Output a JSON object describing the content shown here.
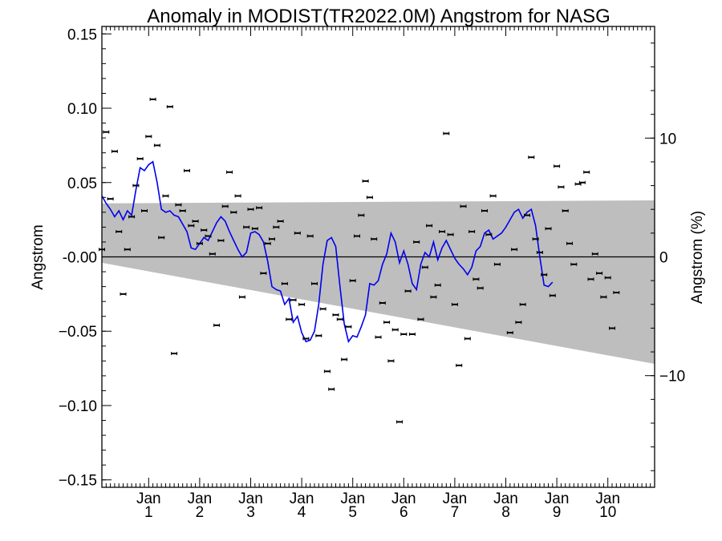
{
  "chart_data": {
    "type": "scatter",
    "title": "Anomaly in MODIST(TR2022.0M) Angstrom for NASG",
    "ylabel": "Angstrom",
    "y2label": "Angstrom (%)",
    "ylim": [
      -0.155,
      0.155
    ],
    "y2lim": [
      -19.4,
      19.4
    ],
    "xlim": [
      0,
      130
    ],
    "x_tick_labels": [
      {
        "x": 11,
        "top": "Jan",
        "bottom": "1"
      },
      {
        "x": 23,
        "top": "Jan",
        "bottom": "2"
      },
      {
        "x": 35,
        "top": "Jan",
        "bottom": "3"
      },
      {
        "x": 47,
        "top": "Jan",
        "bottom": "4"
      },
      {
        "x": 59,
        "top": "Jan",
        "bottom": "5"
      },
      {
        "x": 71,
        "top": "Jan",
        "bottom": "6"
      },
      {
        "x": 83,
        "top": "Jan",
        "bottom": "7"
      },
      {
        "x": 95,
        "top": "Jan",
        "bottom": "8"
      },
      {
        "x": 107,
        "top": "Jan",
        "bottom": "9"
      },
      {
        "x": 119,
        "top": "Jan",
        "bottom": "10"
      }
    ],
    "y_ticks": [
      -0.15,
      -0.1,
      -0.05,
      0,
      0.05,
      0.1,
      0.15
    ],
    "y_tick_labels": [
      "−0.15",
      "−0.10",
      "−0.05",
      "-0.00",
      "0.05",
      "0.10",
      "0.15"
    ],
    "y2_ticks": [
      -10,
      0,
      10
    ],
    "y2_tick_labels": [
      "−10",
      "0",
      "10"
    ],
    "band": {
      "upper": [
        [
          0,
          0.036
        ],
        [
          130,
          0.038
        ]
      ],
      "lower": [
        [
          0,
          -0.004
        ],
        [
          130,
          -0.072
        ]
      ],
      "color": "#bebebe"
    },
    "zero_line": 0,
    "series": [
      {
        "kind": "monthly_points",
        "color": "#000000",
        "points": [
          [
            0,
            0.005
          ],
          [
            1,
            0.084
          ],
          [
            2,
            0.039
          ],
          [
            3,
            0.071
          ],
          [
            4,
            0.017
          ],
          [
            5,
            -0.025
          ],
          [
            6,
            0.005
          ],
          [
            7,
            0.027
          ],
          [
            8,
            0.048
          ],
          [
            9,
            0.066
          ],
          [
            10,
            0.031
          ],
          [
            11,
            0.081
          ],
          [
            12,
            0.106
          ],
          [
            13,
            0.075
          ],
          [
            14,
            0.013
          ],
          [
            15,
            0.041
          ],
          [
            16,
            0.101
          ],
          [
            17,
            -0.065
          ],
          [
            18,
            0.035
          ],
          [
            19,
            0.031
          ],
          [
            20,
            0.058
          ],
          [
            21,
            0.021
          ],
          [
            22,
            0.024
          ],
          [
            23,
            0.009
          ],
          [
            24,
            0.018
          ],
          [
            25,
            0.014
          ],
          [
            26,
            0.002
          ],
          [
            27,
            -0.046
          ],
          [
            28,
            0.011
          ],
          [
            29,
            0.034
          ],
          [
            30,
            0.057
          ],
          [
            31,
            0.03
          ],
          [
            32,
            0.041
          ],
          [
            33,
            -0.027
          ],
          [
            34,
            0.02
          ],
          [
            35,
            0.032
          ],
          [
            36,
            0.019
          ],
          [
            37,
            0.033
          ],
          [
            38,
            -0.011
          ],
          [
            39,
            0.009
          ],
          [
            40,
            0.012
          ],
          [
            41,
            0.02
          ],
          [
            42,
            0.024
          ],
          [
            43,
            -0.018
          ],
          [
            44,
            -0.042
          ],
          [
            45,
            -0.029
          ],
          [
            46,
            0.016
          ],
          [
            47,
            -0.032
          ],
          [
            48,
            -0.055
          ],
          [
            49,
            0.014
          ],
          [
            50,
            -0.018
          ],
          [
            51,
            -0.053
          ],
          [
            52,
            -0.035
          ],
          [
            53,
            -0.077
          ],
          [
            54,
            -0.089
          ],
          [
            55,
            -0.039
          ],
          [
            56,
            -0.042
          ],
          [
            57,
            -0.069
          ],
          [
            58,
            -0.047
          ],
          [
            59,
            -0.016
          ],
          [
            60,
            0.014
          ],
          [
            61,
            0.028
          ],
          [
            62,
            0.051
          ],
          [
            63,
            0.04
          ],
          [
            64,
            0.012
          ],
          [
            65,
            -0.054
          ],
          [
            66,
            -0.031
          ],
          [
            67,
            -0.044
          ],
          [
            68,
            -0.07
          ],
          [
            69,
            -0.049
          ],
          [
            70,
            -0.111
          ],
          [
            71,
            -0.052
          ],
          [
            72,
            -0.023
          ],
          [
            73,
            -0.052
          ],
          [
            74,
            0.01
          ],
          [
            75,
            -0.042
          ],
          [
            76,
            -0.007
          ],
          [
            77,
            0.021
          ],
          [
            78,
            -0.027
          ],
          [
            79,
            -0.019
          ],
          [
            80,
            0.017
          ],
          [
            81,
            0.083
          ],
          [
            82,
            0.015
          ],
          [
            83,
            -0.032
          ],
          [
            84,
            -0.073
          ],
          [
            85,
            0.034
          ],
          [
            86,
            -0.055
          ],
          [
            87,
            0.017
          ],
          [
            88,
            -0.015
          ],
          [
            89,
            -0.021
          ],
          [
            90,
            0.031
          ],
          [
            91,
            0.015
          ],
          [
            92,
            0.041
          ],
          [
            93,
            -0.005
          ],
          [
            96,
            -0.051
          ],
          [
            97,
            0.005
          ],
          [
            98,
            -0.044
          ],
          [
            99,
            -0.032
          ],
          [
            100,
            0.028
          ],
          [
            101,
            0.067
          ],
          [
            102,
            0.012
          ],
          [
            103,
            0.003
          ],
          [
            104,
            -0.012
          ],
          [
            105,
            0.019
          ],
          [
            106,
            -0.026
          ],
          [
            107,
            0.061
          ],
          [
            108,
            0.047
          ],
          [
            109,
            0.031
          ],
          [
            110,
            0.009
          ],
          [
            111,
            -0.005
          ],
          [
            112,
            0.049
          ],
          [
            113,
            0.05
          ],
          [
            114,
            0.057
          ],
          [
            115,
            -0.015
          ],
          [
            116,
            0.002
          ],
          [
            117,
            -0.011
          ],
          [
            118,
            -0.027
          ],
          [
            119,
            -0.014
          ],
          [
            120,
            -0.048
          ],
          [
            121,
            -0.024
          ]
        ]
      },
      {
        "kind": "smoothed_line",
        "color": "#0000ee",
        "points": [
          [
            0,
            0.041
          ],
          [
            1,
            0.036
          ],
          [
            2,
            0.032
          ],
          [
            3,
            0.027
          ],
          [
            4,
            0.031
          ],
          [
            5,
            0.025
          ],
          [
            6,
            0.031
          ],
          [
            7,
            0.028
          ],
          [
            8,
            0.045
          ],
          [
            9,
            0.06
          ],
          [
            10,
            0.058
          ],
          [
            11,
            0.062
          ],
          [
            12,
            0.064
          ],
          [
            13,
            0.05
          ],
          [
            14,
            0.032
          ],
          [
            15,
            0.03
          ],
          [
            16,
            0.031
          ],
          [
            17,
            0.028
          ],
          [
            18,
            0.027
          ],
          [
            19,
            0.022
          ],
          [
            20,
            0.017
          ],
          [
            21,
            0.006
          ],
          [
            22,
            0.005
          ],
          [
            23,
            0.009
          ],
          [
            24,
            0.013
          ],
          [
            25,
            0.011
          ],
          [
            26,
            0.017
          ],
          [
            27,
            0.023
          ],
          [
            28,
            0.027
          ],
          [
            29,
            0.024
          ],
          [
            30,
            0.017
          ],
          [
            31,
            0.011
          ],
          [
            32,
            0.005
          ],
          [
            33,
            0.0
          ],
          [
            34,
            0.003
          ],
          [
            35,
            0.016
          ],
          [
            36,
            0.017
          ],
          [
            37,
            0.015
          ],
          [
            38,
            0.01
          ],
          [
            39,
            -0.003
          ],
          [
            40,
            -0.02
          ],
          [
            41,
            -0.022
          ],
          [
            42,
            -0.023
          ],
          [
            43,
            -0.032
          ],
          [
            44,
            -0.028
          ],
          [
            45,
            -0.044
          ],
          [
            46,
            -0.04
          ],
          [
            47,
            -0.051
          ],
          [
            48,
            -0.057
          ],
          [
            49,
            -0.056
          ],
          [
            50,
            -0.05
          ],
          [
            51,
            -0.032
          ],
          [
            52,
            -0.005
          ],
          [
            53,
            0.011
          ],
          [
            54,
            0.013
          ],
          [
            55,
            0.007
          ],
          [
            56,
            -0.02
          ],
          [
            57,
            -0.045
          ],
          [
            58,
            -0.057
          ],
          [
            59,
            -0.053
          ],
          [
            60,
            -0.054
          ],
          [
            61,
            -0.047
          ],
          [
            62,
            -0.039
          ],
          [
            63,
            -0.018
          ],
          [
            64,
            -0.019
          ],
          [
            65,
            -0.016
          ],
          [
            66,
            -0.005
          ],
          [
            67,
            0.002
          ],
          [
            68,
            0.016
          ],
          [
            69,
            0.01
          ],
          [
            70,
            -0.004
          ],
          [
            71,
            0.004
          ],
          [
            72,
            -0.005
          ],
          [
            73,
            -0.018
          ],
          [
            74,
            -0.022
          ],
          [
            75,
            -0.005
          ],
          [
            76,
            0.003
          ],
          [
            77,
            0.0
          ],
          [
            78,
            0.01
          ],
          [
            79,
            -0.002
          ],
          [
            80,
            0.006
          ],
          [
            81,
            0.011
          ],
          [
            82,
            0.005
          ],
          [
            83,
            -0.001
          ],
          [
            84,
            -0.005
          ],
          [
            85,
            -0.008
          ],
          [
            86,
            -0.012
          ],
          [
            87,
            -0.007
          ],
          [
            88,
            0.004
          ],
          [
            89,
            0.007
          ],
          [
            90,
            0.016
          ],
          [
            91,
            0.018
          ],
          [
            92,
            0.012
          ],
          [
            93,
            0.014
          ],
          [
            94,
            0.016
          ],
          [
            95,
            0.02
          ],
          [
            96,
            0.025
          ],
          [
            97,
            0.03
          ],
          [
            98,
            0.032
          ],
          [
            99,
            0.026
          ],
          [
            100,
            0.03
          ],
          [
            101,
            0.032
          ],
          [
            102,
            0.021
          ],
          [
            103,
            0.0
          ],
          [
            104,
            -0.019
          ],
          [
            105,
            -0.02
          ],
          [
            106,
            -0.017
          ]
        ]
      }
    ]
  }
}
